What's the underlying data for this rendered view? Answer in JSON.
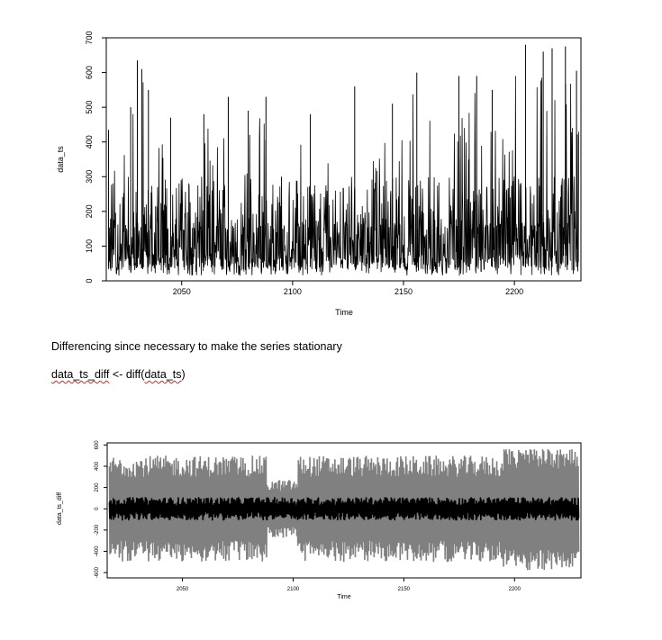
{
  "document": {
    "paragraph": "Differencing since necessary to make the series stationary",
    "code": {
      "var_name": "data_ts_diff",
      "assign": " <- diff(",
      "arg": "data_ts",
      "close": ")"
    }
  },
  "chart_data": [
    {
      "type": "line",
      "xlabel": "Time",
      "ylabel": "data_ts",
      "xlim": [
        2016,
        2230
      ],
      "ylim": [
        0,
        700
      ],
      "xticks": [
        2050,
        2100,
        2150,
        2200
      ],
      "yticks": [
        0,
        100,
        200,
        300,
        400,
        500,
        600,
        700
      ],
      "grid": false,
      "series": [
        {
          "color": "#000000",
          "description_values": {
            "x_range": [
              2017,
              2229
            ],
            "baseline_level": 90,
            "typical_min": 15,
            "peaks": [
              {
                "x": 2017,
                "y": 435
              },
              {
                "x": 2027,
                "y": 500
              },
              {
                "x": 2030,
                "y": 635
              },
              {
                "x": 2032,
                "y": 610
              },
              {
                "x": 2035,
                "y": 550
              },
              {
                "x": 2045,
                "y": 470
              },
              {
                "x": 2060,
                "y": 480
              },
              {
                "x": 2071,
                "y": 530
              },
              {
                "x": 2080,
                "y": 490
              },
              {
                "x": 2088,
                "y": 530
              },
              {
                "x": 2095,
                "y": 300
              },
              {
                "x": 2108,
                "y": 480
              },
              {
                "x": 2128,
                "y": 560
              },
              {
                "x": 2145,
                "y": 510
              },
              {
                "x": 2156,
                "y": 600
              },
              {
                "x": 2175,
                "y": 590
              },
              {
                "x": 2183,
                "y": 590
              },
              {
                "x": 2190,
                "y": 550
              },
              {
                "x": 2205,
                "y": 680
              },
              {
                "x": 2213,
                "y": 660
              },
              {
                "x": 2217,
                "y": 670
              },
              {
                "x": 2223,
                "y": 675
              },
              {
                "x": 2228,
                "y": 605
              }
            ]
          }
        }
      ]
    },
    {
      "type": "line",
      "xlabel": "Time",
      "ylabel": "data_ts_diff",
      "xlim": [
        2016,
        2230
      ],
      "ylim": [
        -650,
        620
      ],
      "xticks": [
        2050,
        2100,
        2150,
        2200
      ],
      "yticks": [
        -600,
        -400,
        -200,
        0,
        200,
        400,
        600
      ],
      "grid": false,
      "series": [
        {
          "color": "#808080",
          "description_values": {
            "x_range": [
              2017,
              2229
            ],
            "envelope_high": 560,
            "envelope_low": -620
          }
        },
        {
          "color": "#000000",
          "description_values": {
            "x_range": [
              2017,
              2229
            ],
            "band_high": 100,
            "band_low": -100
          }
        }
      ]
    }
  ]
}
